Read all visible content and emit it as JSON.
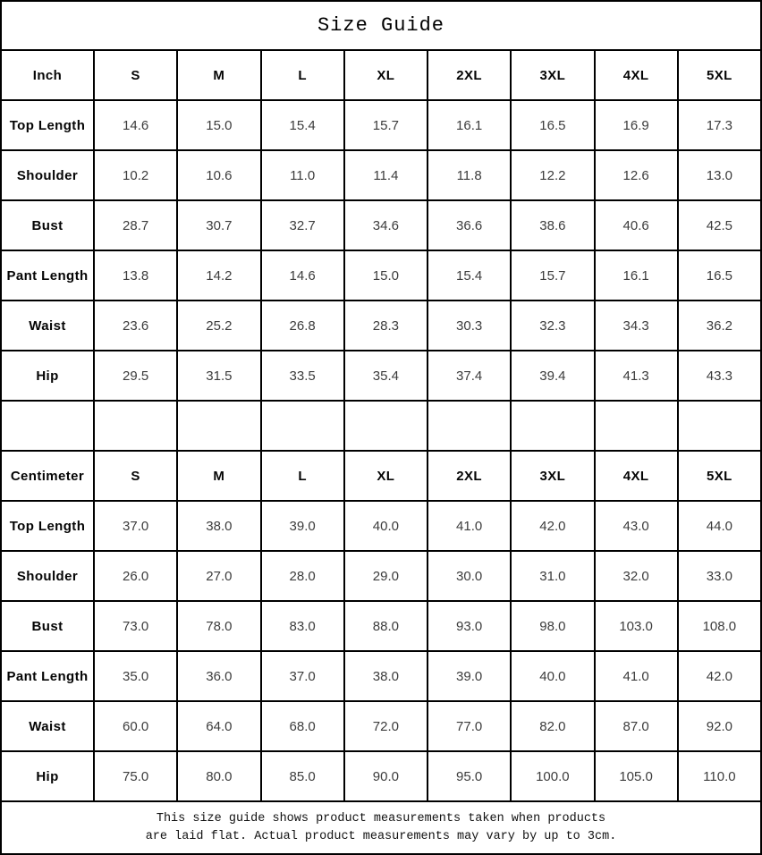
{
  "title": "Size Guide",
  "sections": [
    {
      "name": "inch",
      "header": [
        "Inch",
        "S",
        "M",
        "L",
        "XL",
        "2XL",
        "3XL",
        "4XL",
        "5XL"
      ],
      "rows": [
        {
          "label": "Top Length",
          "values": [
            "14.6",
            "15.0",
            "15.4",
            "15.7",
            "16.1",
            "16.5",
            "16.9",
            "17.3"
          ]
        },
        {
          "label": "Shoulder",
          "values": [
            "10.2",
            "10.6",
            "11.0",
            "11.4",
            "11.8",
            "12.2",
            "12.6",
            "13.0"
          ]
        },
        {
          "label": "Bust",
          "values": [
            "28.7",
            "30.7",
            "32.7",
            "34.6",
            "36.6",
            "38.6",
            "40.6",
            "42.5"
          ]
        },
        {
          "label": "Pant Length",
          "values": [
            "13.8",
            "14.2",
            "14.6",
            "15.0",
            "15.4",
            "15.7",
            "16.1",
            "16.5"
          ]
        },
        {
          "label": "Waist",
          "values": [
            "23.6",
            "25.2",
            "26.8",
            "28.3",
            "30.3",
            "32.3",
            "34.3",
            "36.2"
          ]
        },
        {
          "label": "Hip",
          "values": [
            "29.5",
            "31.5",
            "33.5",
            "35.4",
            "37.4",
            "39.4",
            "41.3",
            "43.3"
          ]
        }
      ]
    },
    {
      "name": "centimeter",
      "header": [
        "Centimeter",
        "S",
        "M",
        "L",
        "XL",
        "2XL",
        "3XL",
        "4XL",
        "5XL"
      ],
      "rows": [
        {
          "label": "Top Length",
          "values": [
            "37.0",
            "38.0",
            "39.0",
            "40.0",
            "41.0",
            "42.0",
            "43.0",
            "44.0"
          ]
        },
        {
          "label": "Shoulder",
          "values": [
            "26.0",
            "27.0",
            "28.0",
            "29.0",
            "30.0",
            "31.0",
            "32.0",
            "33.0"
          ]
        },
        {
          "label": "Bust",
          "values": [
            "73.0",
            "78.0",
            "83.0",
            "88.0",
            "93.0",
            "98.0",
            "103.0",
            "108.0"
          ]
        },
        {
          "label": "Pant Length",
          "values": [
            "35.0",
            "36.0",
            "37.0",
            "38.0",
            "39.0",
            "40.0",
            "41.0",
            "42.0"
          ]
        },
        {
          "label": "Waist",
          "values": [
            "60.0",
            "64.0",
            "68.0",
            "72.0",
            "77.0",
            "82.0",
            "87.0",
            "92.0"
          ]
        },
        {
          "label": "Hip",
          "values": [
            "75.0",
            "80.0",
            "85.0",
            "90.0",
            "95.0",
            "100.0",
            "105.0",
            "110.0"
          ]
        }
      ]
    }
  ],
  "footer_lines": [
    "This size guide shows product measurements taken when products",
    "are laid flat. Actual product measurements may vary by up to 3cm."
  ]
}
